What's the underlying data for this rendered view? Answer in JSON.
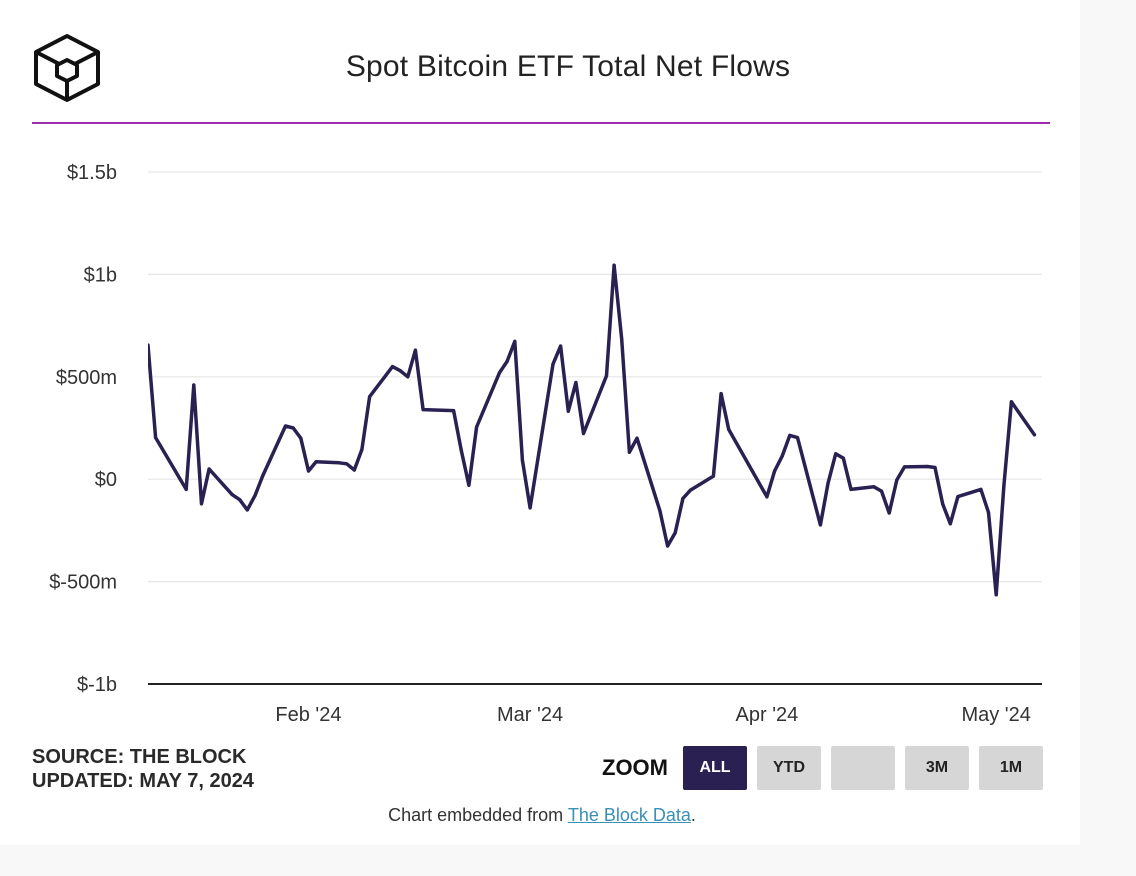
{
  "title": "Spot Bitcoin ETF Total Net Flows",
  "source_text": "SOURCE: THE BLOCK",
  "updated_text": "UPDATED: MAY 7, 2024",
  "zoom": {
    "label": "ZOOM",
    "buttons": [
      "ALL",
      "YTD",
      "",
      "3M",
      "1M"
    ],
    "active": "ALL"
  },
  "embed": {
    "prefix": "Chart embedded from ",
    "link_text": "The Block Data",
    "suffix": "."
  },
  "colors": {
    "accent_rule": "#9b2fae",
    "line": "#2a2152",
    "active_button": "#2a2152",
    "link": "#3a8fb7"
  },
  "chart_data": {
    "type": "line",
    "title": "Spot Bitcoin ETF Total Net Flows",
    "xlabel": "",
    "ylabel": "",
    "units": "USD",
    "grid": true,
    "legend": "none",
    "ylim": [
      -1000000000,
      1500000000
    ],
    "y_ticks": [
      {
        "value": 1500000000,
        "label": "$1.5b"
      },
      {
        "value": 1000000000,
        "label": "$1b"
      },
      {
        "value": 500000000,
        "label": "$500m"
      },
      {
        "value": 0,
        "label": "$0"
      },
      {
        "value": -500000000,
        "label": "$-500m"
      },
      {
        "value": -1000000000,
        "label": "$-1b"
      }
    ],
    "x_ticks": [
      {
        "date": "2024-02-01",
        "label": "Feb '24"
      },
      {
        "date": "2024-03-01",
        "label": "Mar '24"
      },
      {
        "date": "2024-04-01",
        "label": "Apr '24"
      },
      {
        "date": "2024-05-01",
        "label": "May '24"
      }
    ],
    "xlim": [
      "2024-01-11",
      "2024-05-07"
    ],
    "series": [
      {
        "name": "",
        "points": [
          [
            "2024-01-11",
            655000000
          ],
          [
            "2024-01-12",
            203000000
          ],
          [
            "2024-01-16",
            -50000000
          ],
          [
            "2024-01-17",
            460000000
          ],
          [
            "2024-01-18",
            -120000000
          ],
          [
            "2024-01-19",
            50000000
          ],
          [
            "2024-01-22",
            -75000000
          ],
          [
            "2024-01-23",
            -100000000
          ],
          [
            "2024-01-24",
            -150000000
          ],
          [
            "2024-01-25",
            -80000000
          ],
          [
            "2024-01-26",
            15000000
          ],
          [
            "2024-01-29",
            260000000
          ],
          [
            "2024-01-30",
            250000000
          ],
          [
            "2024-01-31",
            200000000
          ],
          [
            "2024-02-01",
            40000000
          ],
          [
            "2024-02-02",
            85000000
          ],
          [
            "2024-02-05",
            80000000
          ],
          [
            "2024-02-06",
            75000000
          ],
          [
            "2024-02-07",
            45000000
          ],
          [
            "2024-02-08",
            145000000
          ],
          [
            "2024-02-09",
            403000000
          ],
          [
            "2024-02-12",
            550000000
          ],
          [
            "2024-02-13",
            530000000
          ],
          [
            "2024-02-14",
            500000000
          ],
          [
            "2024-02-15",
            630000000
          ],
          [
            "2024-02-16",
            340000000
          ],
          [
            "2024-02-20",
            335000000
          ],
          [
            "2024-02-21",
            140000000
          ],
          [
            "2024-02-22",
            -30000000
          ],
          [
            "2024-02-23",
            255000000
          ],
          [
            "2024-02-26",
            520000000
          ],
          [
            "2024-02-27",
            575000000
          ],
          [
            "2024-02-28",
            673000000
          ],
          [
            "2024-02-29",
            93000000
          ],
          [
            "2024-03-01",
            -140000000
          ],
          [
            "2024-03-04",
            562000000
          ],
          [
            "2024-03-05",
            650000000
          ],
          [
            "2024-03-06",
            332000000
          ],
          [
            "2024-03-07",
            472000000
          ],
          [
            "2024-03-08",
            223000000
          ],
          [
            "2024-03-11",
            505000000
          ],
          [
            "2024-03-12",
            1045000000
          ],
          [
            "2024-03-13",
            684000000
          ],
          [
            "2024-03-14",
            132000000
          ],
          [
            "2024-03-15",
            200000000
          ],
          [
            "2024-03-18",
            -154000000
          ],
          [
            "2024-03-19",
            -326000000
          ],
          [
            "2024-03-20",
            -261000000
          ],
          [
            "2024-03-21",
            -94000000
          ],
          [
            "2024-03-22",
            -53000000
          ],
          [
            "2024-03-25",
            15000000
          ],
          [
            "2024-03-26",
            418000000
          ],
          [
            "2024-03-27",
            243000000
          ],
          [
            "2024-04-01",
            -86000000
          ],
          [
            "2024-04-02",
            40000000
          ],
          [
            "2024-04-03",
            113000000
          ],
          [
            "2024-04-04",
            214000000
          ],
          [
            "2024-04-05",
            203000000
          ],
          [
            "2024-04-08",
            -223000000
          ],
          [
            "2024-04-09",
            -18000000
          ],
          [
            "2024-04-10",
            124000000
          ],
          [
            "2024-04-11",
            103000000
          ],
          [
            "2024-04-12",
            -50000000
          ],
          [
            "2024-04-15",
            -37000000
          ],
          [
            "2024-04-16",
            -58000000
          ],
          [
            "2024-04-17",
            -165000000
          ],
          [
            "2024-04-18",
            -4000000
          ],
          [
            "2024-04-19",
            60000000
          ],
          [
            "2024-04-22",
            62000000
          ],
          [
            "2024-04-23",
            57000000
          ],
          [
            "2024-04-24",
            -121000000
          ],
          [
            "2024-04-25",
            -218000000
          ],
          [
            "2024-04-26",
            -85000000
          ],
          [
            "2024-04-29",
            -50000000
          ],
          [
            "2024-04-30",
            -162000000
          ],
          [
            "2024-05-01",
            -564000000
          ],
          [
            "2024-05-02",
            -37000000
          ],
          [
            "2024-05-03",
            378000000
          ],
          [
            "2024-05-06",
            217000000
          ]
        ]
      }
    ]
  }
}
